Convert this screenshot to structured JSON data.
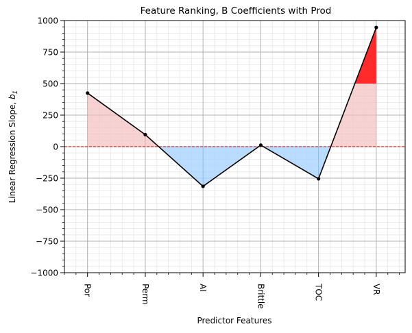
{
  "chart_data": {
    "type": "line",
    "title": "Feature Ranking, B Coefficients with Prod",
    "xlabel": "Predictor Features",
    "ylabel_main": "Linear Regression Slope, ",
    "ylabel_sym": "b",
    "ylabel_sub": "1",
    "categories": [
      "Por",
      "Perm",
      "AI",
      "Brittle",
      "TOC",
      "VR"
    ],
    "values": [
      425,
      95,
      -315,
      12,
      -255,
      945
    ],
    "ylim": [
      -1000,
      1000
    ],
    "yticks": [
      -1000,
      -750,
      -500,
      -250,
      0,
      250,
      500,
      750,
      1000
    ],
    "ytick_labels": [
      "−1000",
      "−750",
      "−500",
      "−250",
      "0",
      "250",
      "500",
      "750",
      "1000"
    ],
    "xlim": [
      -0.4,
      5.5
    ],
    "reference_line": 0,
    "highlight_threshold": 500,
    "grid": true,
    "colors": {
      "line": "#000000",
      "positive_fill": "#f5c0bf",
      "negative_fill": "#a8d4ff",
      "highlight_fill": "#ff2a2a",
      "reference": "#d62728",
      "major_grid": "#b0b0b0",
      "minor_grid": "#e6e6e6"
    }
  }
}
